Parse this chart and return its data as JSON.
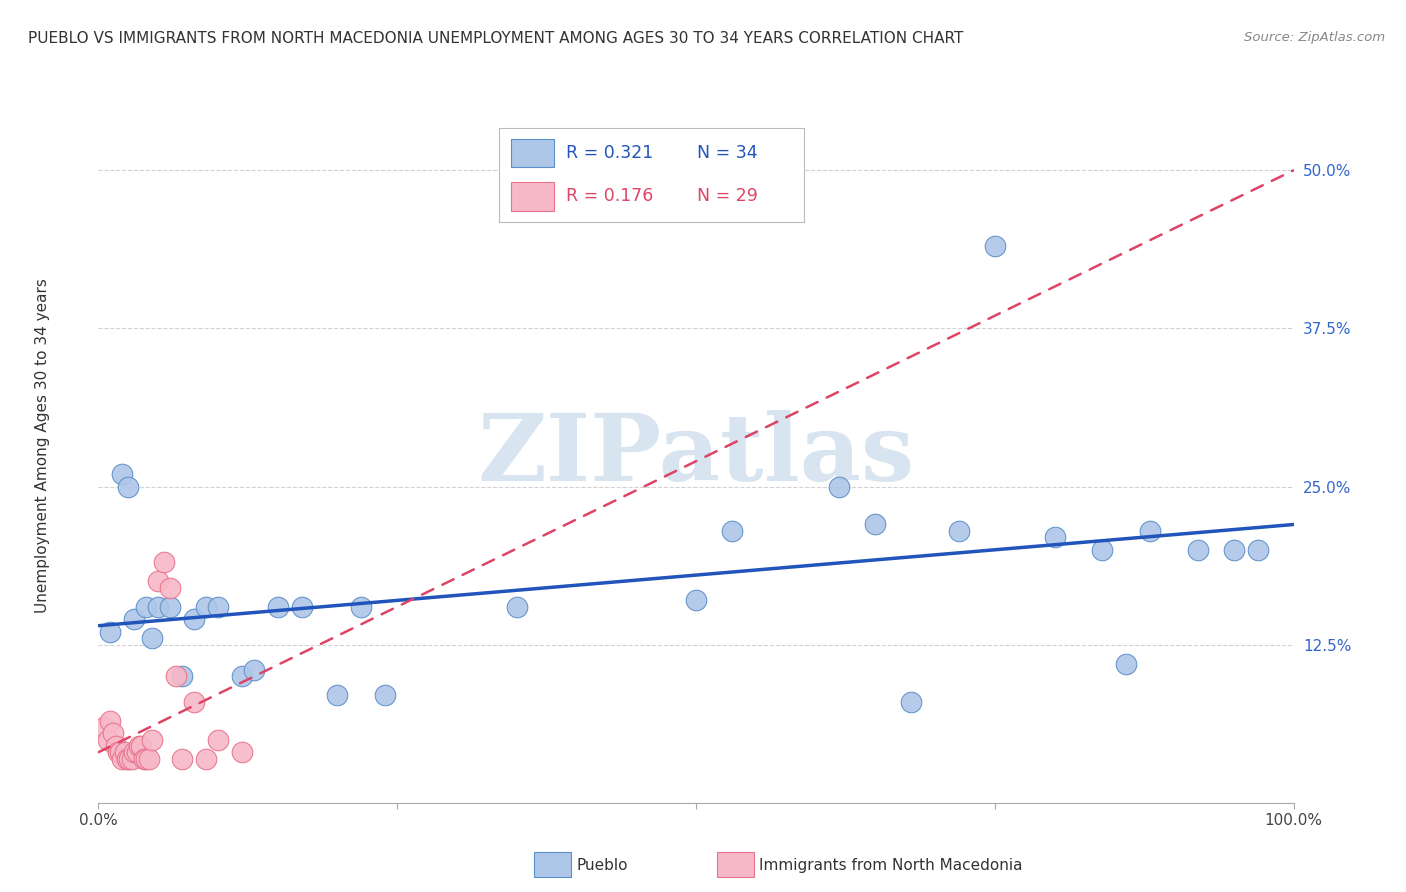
{
  "title": "PUEBLO VS IMMIGRANTS FROM NORTH MACEDONIA UNEMPLOYMENT AMONG AGES 30 TO 34 YEARS CORRELATION CHART",
  "source": "Source: ZipAtlas.com",
  "ylabel": "Unemployment Among Ages 30 to 34 years",
  "xlim": [
    0,
    1.0
  ],
  "ylim": [
    0,
    0.55
  ],
  "xticks": [
    0.0,
    0.25,
    0.5,
    0.75,
    1.0
  ],
  "xticklabels": [
    "0.0%",
    "",
    "",
    "",
    "100.0%"
  ],
  "yticks": [
    0.0,
    0.125,
    0.25,
    0.375,
    0.5
  ],
  "yticklabels": [
    "",
    "12.5%",
    "25.0%",
    "37.5%",
    "50.0%"
  ],
  "legend_r1": "R = 0.321",
  "legend_n1": "N = 34",
  "legend_r2": "R = 0.176",
  "legend_n2": "N = 29",
  "pueblo_color": "#aec6e8",
  "pueblo_edge_color": "#5b8fc9",
  "immigrants_color": "#f7b8c8",
  "immigrants_edge_color": "#e8728a",
  "pueblo_line_color": "#2255bb",
  "immigrants_line_color": "#dd4466",
  "watermark_color": "#d8e4f0",
  "watermark": "ZIPatlas",
  "pueblo_scatter_x": [
    0.01,
    0.02,
    0.025,
    0.03,
    0.04,
    0.045,
    0.05,
    0.06,
    0.07,
    0.08,
    0.09,
    0.1,
    0.12,
    0.13,
    0.15,
    0.17,
    0.2,
    0.22,
    0.24,
    0.35,
    0.5,
    0.53,
    0.62,
    0.65,
    0.68,
    0.72,
    0.75,
    0.8,
    0.84,
    0.86,
    0.88,
    0.92,
    0.95,
    0.97
  ],
  "pueblo_scatter_y": [
    0.135,
    0.26,
    0.25,
    0.145,
    0.155,
    0.13,
    0.155,
    0.155,
    0.1,
    0.145,
    0.155,
    0.155,
    0.1,
    0.105,
    0.155,
    0.155,
    0.085,
    0.155,
    0.085,
    0.155,
    0.16,
    0.215,
    0.25,
    0.22,
    0.08,
    0.215,
    0.44,
    0.21,
    0.2,
    0.11,
    0.215,
    0.2,
    0.2,
    0.2
  ],
  "immigrants_scatter_x": [
    0.005,
    0.008,
    0.01,
    0.012,
    0.015,
    0.016,
    0.018,
    0.02,
    0.022,
    0.024,
    0.026,
    0.028,
    0.03,
    0.032,
    0.034,
    0.036,
    0.038,
    0.04,
    0.042,
    0.045,
    0.05,
    0.055,
    0.06,
    0.065,
    0.07,
    0.08,
    0.09,
    0.1,
    0.12
  ],
  "immigrants_scatter_y": [
    0.06,
    0.05,
    0.065,
    0.055,
    0.045,
    0.04,
    0.04,
    0.035,
    0.04,
    0.035,
    0.035,
    0.035,
    0.04,
    0.04,
    0.045,
    0.045,
    0.035,
    0.035,
    0.035,
    0.05,
    0.175,
    0.19,
    0.17,
    0.1,
    0.035,
    0.08,
    0.035,
    0.05,
    0.04
  ],
  "pueblo_trendline_x": [
    0.0,
    1.0
  ],
  "pueblo_trendline_y": [
    0.14,
    0.22
  ],
  "immigrants_trendline_x": [
    0.0,
    1.0
  ],
  "immigrants_trendline_y": [
    0.04,
    0.5
  ]
}
